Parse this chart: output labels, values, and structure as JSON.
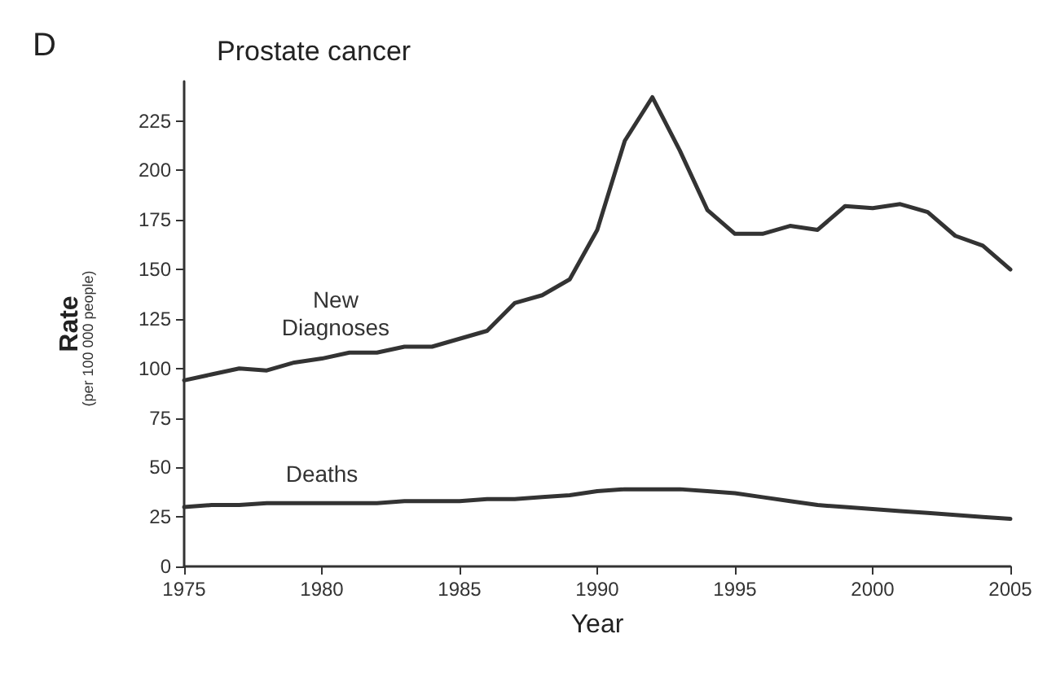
{
  "chart_data": {
    "type": "line",
    "title": "Prostate cancer",
    "xlabel": "Year",
    "ylabel": "Rate",
    "annotations": [
      "D",
      "(per 100 000 people)"
    ],
    "x": [
      1975,
      1976,
      1977,
      1978,
      1979,
      1980,
      1981,
      1982,
      1983,
      1984,
      1985,
      1986,
      1987,
      1988,
      1989,
      1990,
      1991,
      1992,
      1993,
      1994,
      1995,
      1996,
      1997,
      1998,
      1999,
      2000,
      2001,
      2002,
      2003,
      2004,
      2005
    ],
    "series": [
      {
        "name": "New Diagnoses",
        "color": "#333333",
        "values": [
          94,
          97,
          100,
          99,
          103,
          105,
          108,
          108,
          111,
          111,
          115,
          119,
          133,
          137,
          145,
          170,
          215,
          237,
          210,
          180,
          168,
          168,
          172,
          170,
          182,
          181,
          183,
          179,
          167,
          162,
          150
        ]
      },
      {
        "name": "Deaths",
        "color": "#333333",
        "values": [
          30,
          31,
          31,
          32,
          32,
          32,
          32,
          32,
          33,
          33,
          33,
          34,
          34,
          35,
          36,
          38,
          39,
          39,
          39,
          38,
          37,
          35,
          33,
          31,
          30,
          29,
          28,
          27,
          26,
          25,
          24
        ]
      }
    ],
    "xlim": [
      1975,
      2005
    ],
    "xticks": [
      1975,
      1980,
      1985,
      1990,
      1995,
      2000,
      2005
    ],
    "ylim": [
      0,
      245
    ],
    "yticks": [
      0,
      25,
      50,
      75,
      100,
      125,
      150,
      175,
      200,
      225
    ],
    "grid": false,
    "legend": false,
    "marker": "none",
    "line_style": "solid"
  }
}
